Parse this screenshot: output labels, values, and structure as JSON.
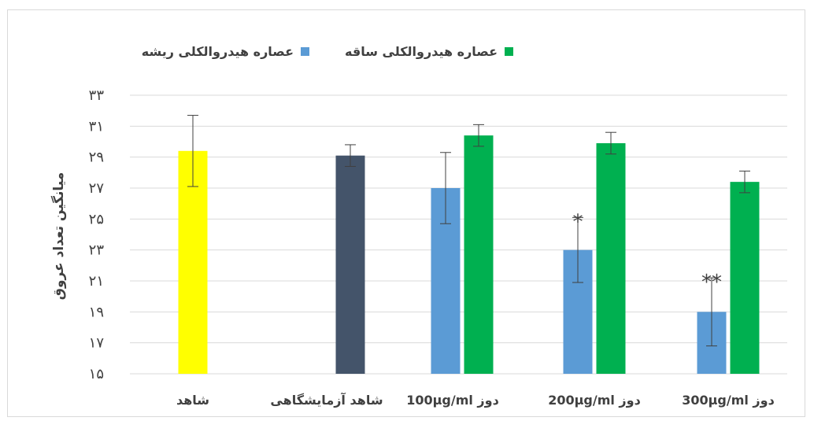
{
  "chart_data": {
    "type": "bar",
    "ylabel": "میانگین تعداد عروق",
    "xlabel": "",
    "ylim": [
      15,
      33
    ],
    "yticks": [
      "۱۵",
      "۱۷",
      "۱۹",
      "۲۱",
      "۲۳",
      "۲۵",
      "۲۷",
      "۲۹",
      "۳۱",
      "۳۳"
    ],
    "grid": true,
    "legend_position": "top",
    "categories": [
      "شاهد",
      "شاهد آزمایشگاهی",
      "دوز 100µg/ml",
      "دوز 200µg/ml",
      "دوز 300µg/ml"
    ],
    "series": [
      {
        "name": "",
        "color": "#ffff00",
        "values": [
          29.4,
          null,
          null,
          null,
          null
        ],
        "errors": [
          2.3,
          null,
          null,
          null,
          null
        ]
      },
      {
        "name": "",
        "color": "#44546a",
        "values": [
          null,
          29.1,
          null,
          null,
          null
        ],
        "errors": [
          null,
          0.7,
          null,
          null,
          null
        ]
      },
      {
        "name": "عصاره هیدروالکلی ریشه",
        "color": "#5b9bd5",
        "values": [
          null,
          null,
          27.0,
          23.0,
          19.0
        ],
        "errors": [
          null,
          null,
          2.3,
          2.1,
          2.2
        ]
      },
      {
        "name": "عصاره هیدروالکلی ساقه",
        "color": "#00b050",
        "values": [
          null,
          null,
          30.4,
          29.9,
          27.4
        ],
        "errors": [
          null,
          null,
          0.7,
          0.7,
          0.7
        ]
      }
    ],
    "annotations": [
      {
        "category": "دوز 200µg/ml",
        "series": "عصاره هیدروالکلی ریشه",
        "text": "*"
      },
      {
        "category": "دوز 300µg/ml",
        "series": "عصاره هیدروالکلی ریشه",
        "text": "**"
      }
    ]
  }
}
